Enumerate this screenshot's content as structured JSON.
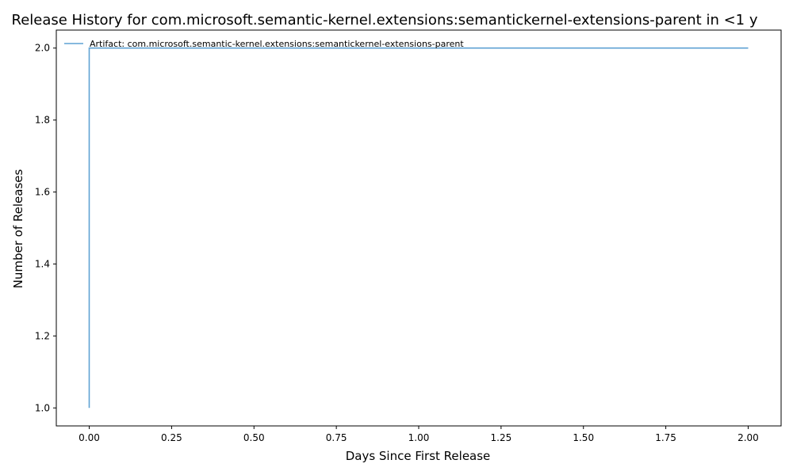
{
  "chart_data": {
    "type": "line",
    "title": "Release History for com.microsoft.semantic-kernel.extensions:semantickernel-extensions-parent in <1 y",
    "xlabel": "Days Since First Release",
    "ylabel": "Number of Releases",
    "xlim": [
      -0.1,
      2.1
    ],
    "ylim": [
      0.95,
      2.05
    ],
    "x_ticks": [
      0.0,
      0.25,
      0.5,
      0.75,
      1.0,
      1.25,
      1.5,
      1.75,
      2.0
    ],
    "x_tick_labels": [
      "0.00",
      "0.25",
      "0.50",
      "0.75",
      "1.00",
      "1.25",
      "1.50",
      "1.75",
      "2.00"
    ],
    "y_ticks": [
      1.0,
      1.2,
      1.4,
      1.6,
      1.8,
      2.0
    ],
    "y_tick_labels": [
      "1.0",
      "1.2",
      "1.4",
      "1.6",
      "1.8",
      "2.0"
    ],
    "grid": false,
    "legend_position": "top-left",
    "series": [
      {
        "name": "Artifact: com.microsoft.semantic-kernel.extensions:semantickernel-extensions-parent",
        "color": "#5fa2d3",
        "step": "post",
        "x": [
          0.0,
          0.0,
          2.0
        ],
        "y": [
          1,
          2,
          2
        ]
      }
    ]
  }
}
